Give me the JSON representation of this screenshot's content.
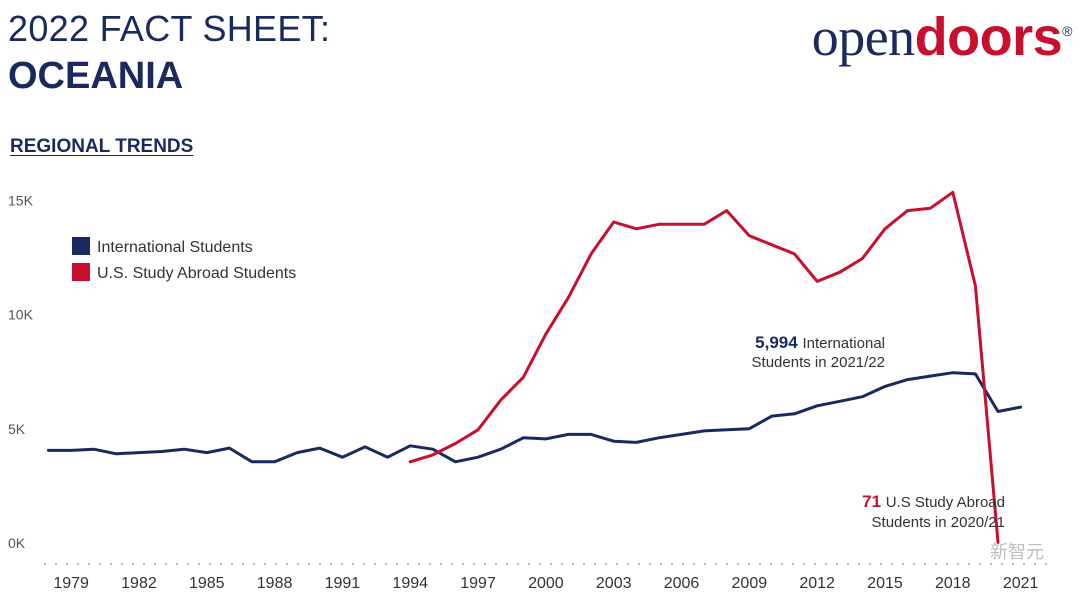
{
  "header": {
    "title_line1": "2022 FACT SHEET:",
    "title_line2": "OCEANIA",
    "logo_open": "open",
    "logo_doors": "doors",
    "logo_reg": "®"
  },
  "section_title": "REGIONAL TRENDS",
  "watermark": "新智元",
  "colors": {
    "international": "#1b2a5e",
    "study_abroad": "#c8102e",
    "axis": "#555555"
  },
  "chart_data": {
    "type": "line",
    "ylim": [
      0,
      15500
    ],
    "xlim": [
      1977.8,
      2022.3
    ],
    "y_ticks": [
      0,
      5000,
      10000,
      15000
    ],
    "y_tick_labels": [
      "0K",
      "5K",
      "10K",
      "15K"
    ],
    "x_ticks": [
      1979,
      1982,
      1985,
      1988,
      1991,
      1994,
      1997,
      2000,
      2003,
      2006,
      2009,
      2012,
      2015,
      2018,
      2021
    ],
    "legend_position": "top-left",
    "series": [
      {
        "name": "International Students",
        "x": [
          1978,
          1979,
          1980,
          1981,
          1982,
          1983,
          1984,
          1985,
          1986,
          1987,
          1988,
          1989,
          1990,
          1991,
          1992,
          1993,
          1994,
          1995,
          1996,
          1997,
          1998,
          1999,
          2000,
          2001,
          2002,
          2003,
          2004,
          2005,
          2006,
          2007,
          2008,
          2009,
          2010,
          2011,
          2012,
          2013,
          2014,
          2015,
          2016,
          2017,
          2018,
          2019,
          2020,
          2021
        ],
        "y": [
          4100,
          4100,
          4150,
          3950,
          4000,
          4050,
          4150,
          4000,
          4200,
          3600,
          3600,
          4000,
          4200,
          3800,
          4250,
          3800,
          4300,
          4150,
          3600,
          3800,
          4150,
          4650,
          4600,
          4800,
          4800,
          4500,
          4450,
          4650,
          4800,
          4950,
          5000,
          5050,
          5600,
          5700,
          6050,
          6250,
          6450,
          6900,
          7200,
          7350,
          7500,
          7450,
          5800,
          5994
        ]
      },
      {
        "name": "U.S. Study Abroad Students",
        "x": [
          1994,
          1995,
          1996,
          1997,
          1998,
          1999,
          2000,
          2001,
          2002,
          2003,
          2004,
          2005,
          2006,
          2007,
          2008,
          2009,
          2010,
          2011,
          2012,
          2013,
          2014,
          2015,
          2016,
          2017,
          2018,
          2019,
          2020
        ],
        "y": [
          3600,
          3900,
          4400,
          5000,
          6300,
          7300,
          9200,
          10800,
          12700,
          14100,
          13800,
          14000,
          14000,
          14000,
          14600,
          13500,
          13100,
          12700,
          11500,
          11900,
          12500,
          13800,
          14600,
          14700,
          15400,
          11300,
          71
        ]
      }
    ],
    "annotations": [
      {
        "value": "5,994",
        "text": "International",
        "text2": "Students in 2021/22"
      },
      {
        "value": "71",
        "text": "U.S Study Abroad",
        "text2": "Students in 2020/21"
      }
    ]
  }
}
